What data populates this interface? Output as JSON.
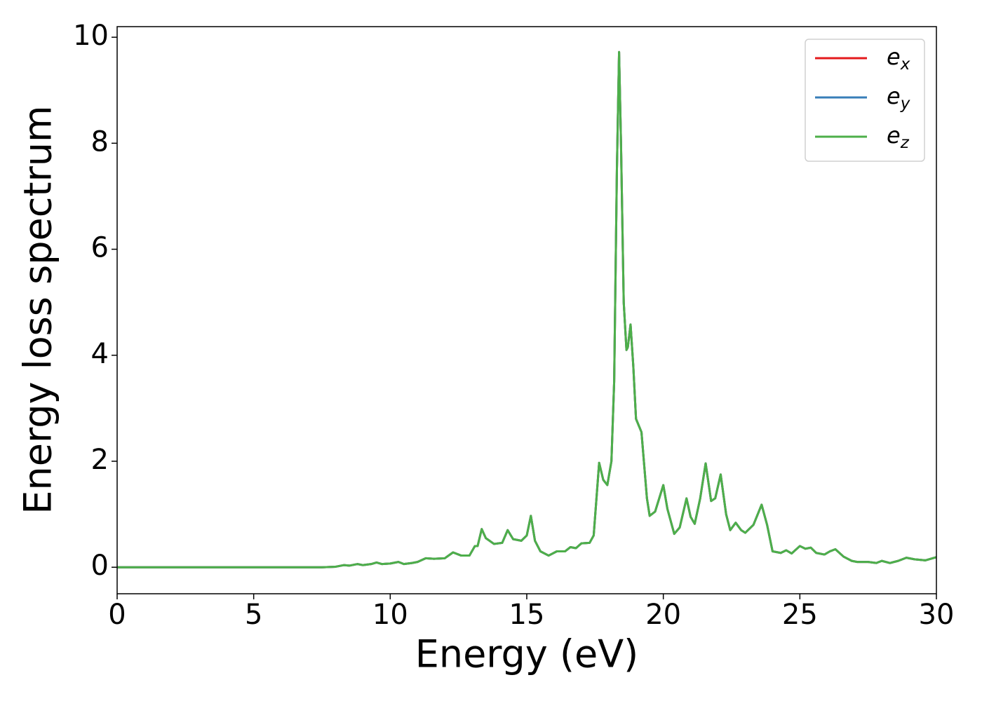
{
  "chart_data": {
    "type": "line",
    "xlabel": "Energy (eV)",
    "ylabel": "Energy loss spectrum",
    "x": [
      0,
      2,
      4,
      6,
      7.5,
      8,
      8.3,
      8.5,
      8.8,
      9,
      9.3,
      9.5,
      9.7,
      10,
      10.3,
      10.5,
      10.8,
      11,
      11.3,
      11.6,
      12,
      12.3,
      12.6,
      12.9,
      13.1,
      13.2,
      13.35,
      13.5,
      13.8,
      14.1,
      14.3,
      14.5,
      14.8,
      15.0,
      15.15,
      15.3,
      15.5,
      15.8,
      16.1,
      16.4,
      16.6,
      16.8,
      17.0,
      17.3,
      17.45,
      17.65,
      17.8,
      17.95,
      18.1,
      18.2,
      18.3,
      18.38,
      18.45,
      18.55,
      18.65,
      18.7,
      18.8,
      18.9,
      19.0,
      19.2,
      19.4,
      19.5,
      19.7,
      20.0,
      20.15,
      20.4,
      20.6,
      20.85,
      21.0,
      21.15,
      21.35,
      21.55,
      21.75,
      21.9,
      22.1,
      22.3,
      22.45,
      22.65,
      22.85,
      23.0,
      23.3,
      23.6,
      23.8,
      24.0,
      24.3,
      24.5,
      24.7,
      25.0,
      25.2,
      25.4,
      25.6,
      25.9,
      26.1,
      26.3,
      26.6,
      26.9,
      27.1,
      27.5,
      27.8,
      28.0,
      28.3,
      28.6,
      28.9,
      29.2,
      29.6,
      30
    ],
    "series": [
      {
        "name": "e_x",
        "color": "#e41a1c",
        "values": [
          0,
          0,
          0,
          0,
          0,
          0.01,
          0.04,
          0.03,
          0.06,
          0.04,
          0.06,
          0.09,
          0.06,
          0.07,
          0.1,
          0.06,
          0.08,
          0.1,
          0.17,
          0.16,
          0.17,
          0.28,
          0.22,
          0.22,
          0.4,
          0.4,
          0.72,
          0.55,
          0.44,
          0.46,
          0.7,
          0.53,
          0.5,
          0.6,
          0.97,
          0.5,
          0.3,
          0.22,
          0.3,
          0.3,
          0.38,
          0.36,
          0.45,
          0.46,
          0.6,
          1.97,
          1.65,
          1.55,
          2.0,
          3.5,
          7.5,
          9.72,
          8.0,
          5.0,
          4.1,
          4.15,
          4.58,
          3.8,
          2.8,
          2.55,
          1.3,
          0.97,
          1.05,
          1.55,
          1.1,
          0.63,
          0.75,
          1.3,
          0.95,
          0.82,
          1.3,
          1.96,
          1.25,
          1.3,
          1.75,
          1.0,
          0.7,
          0.84,
          0.7,
          0.65,
          0.8,
          1.18,
          0.8,
          0.3,
          0.27,
          0.32,
          0.26,
          0.4,
          0.35,
          0.37,
          0.27,
          0.24,
          0.3,
          0.34,
          0.2,
          0.12,
          0.1,
          0.1,
          0.08,
          0.12,
          0.08,
          0.12,
          0.18,
          0.15,
          0.13,
          0.19
        ]
      },
      {
        "name": "e_y",
        "color": "#377eb8",
        "values": [
          0,
          0,
          0,
          0,
          0,
          0.01,
          0.04,
          0.03,
          0.06,
          0.04,
          0.06,
          0.09,
          0.06,
          0.07,
          0.1,
          0.06,
          0.08,
          0.1,
          0.17,
          0.16,
          0.17,
          0.28,
          0.22,
          0.22,
          0.4,
          0.4,
          0.72,
          0.55,
          0.44,
          0.46,
          0.7,
          0.53,
          0.5,
          0.6,
          0.97,
          0.5,
          0.3,
          0.22,
          0.3,
          0.3,
          0.38,
          0.36,
          0.45,
          0.46,
          0.6,
          1.97,
          1.65,
          1.55,
          2.0,
          3.5,
          7.5,
          9.72,
          8.0,
          5.0,
          4.1,
          4.15,
          4.58,
          3.8,
          2.8,
          2.55,
          1.3,
          0.97,
          1.05,
          1.55,
          1.1,
          0.63,
          0.75,
          1.3,
          0.95,
          0.82,
          1.3,
          1.96,
          1.25,
          1.3,
          1.75,
          1.0,
          0.7,
          0.84,
          0.7,
          0.65,
          0.8,
          1.18,
          0.8,
          0.3,
          0.27,
          0.32,
          0.26,
          0.4,
          0.35,
          0.37,
          0.27,
          0.24,
          0.3,
          0.34,
          0.2,
          0.12,
          0.1,
          0.1,
          0.08,
          0.12,
          0.08,
          0.12,
          0.18,
          0.15,
          0.13,
          0.19
        ]
      },
      {
        "name": "e_z",
        "color": "#4daf4a",
        "values": [
          0,
          0,
          0,
          0,
          0,
          0.01,
          0.04,
          0.03,
          0.06,
          0.04,
          0.06,
          0.09,
          0.06,
          0.07,
          0.1,
          0.06,
          0.08,
          0.1,
          0.17,
          0.16,
          0.17,
          0.28,
          0.22,
          0.22,
          0.4,
          0.4,
          0.72,
          0.55,
          0.44,
          0.46,
          0.7,
          0.53,
          0.5,
          0.6,
          0.97,
          0.5,
          0.3,
          0.22,
          0.3,
          0.3,
          0.38,
          0.36,
          0.45,
          0.46,
          0.6,
          1.97,
          1.65,
          1.55,
          2.0,
          3.5,
          7.5,
          9.72,
          8.0,
          5.0,
          4.1,
          4.15,
          4.58,
          3.8,
          2.8,
          2.55,
          1.3,
          0.97,
          1.05,
          1.55,
          1.1,
          0.63,
          0.75,
          1.3,
          0.95,
          0.82,
          1.3,
          1.96,
          1.25,
          1.3,
          1.75,
          1.0,
          0.7,
          0.84,
          0.7,
          0.65,
          0.8,
          1.18,
          0.8,
          0.3,
          0.27,
          0.32,
          0.26,
          0.4,
          0.35,
          0.37,
          0.27,
          0.24,
          0.3,
          0.34,
          0.2,
          0.12,
          0.1,
          0.1,
          0.08,
          0.12,
          0.08,
          0.12,
          0.18,
          0.15,
          0.13,
          0.19
        ]
      }
    ],
    "xlim": [
      0,
      30
    ],
    "xticks": [
      0,
      5,
      10,
      15,
      20,
      25,
      30
    ],
    "ylim": [
      -0.5,
      10.2
    ],
    "yticks": [
      0,
      2,
      4,
      6,
      8,
      10
    ],
    "grid": false,
    "legend": "upper right"
  }
}
